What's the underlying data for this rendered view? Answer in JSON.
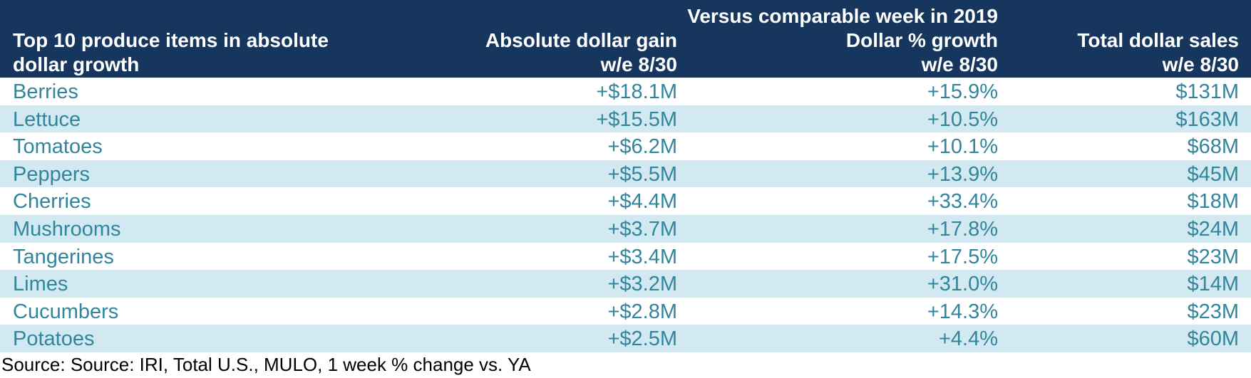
{
  "chart_data": {
    "type": "table",
    "header": {
      "super": "Versus comparable week in 2019",
      "col_item": [
        "Top 10 produce items in absolute",
        "dollar growth"
      ],
      "col_gain": [
        "Absolute dollar gain",
        "w/e 8/30"
      ],
      "col_pct": [
        "Dollar % growth",
        "w/e 8/30"
      ],
      "col_sales": [
        "Total dollar sales",
        "w/e 8/30"
      ]
    },
    "rows": [
      {
        "item": "Berries",
        "gain": "+$18.1M",
        "pct": "+15.9%",
        "sales": "$131M"
      },
      {
        "item": "Lettuce",
        "gain": "+$15.5M",
        "pct": "+10.5%",
        "sales": "$163M"
      },
      {
        "item": "Tomatoes",
        "gain": "+$6.2M",
        "pct": "+10.1%",
        "sales": "$68M"
      },
      {
        "item": "Peppers",
        "gain": "+$5.5M",
        "pct": "+13.9%",
        "sales": "$45M"
      },
      {
        "item": "Cherries",
        "gain": "+$4.4M",
        "pct": "+33.4%",
        "sales": "$18M"
      },
      {
        "item": "Mushrooms",
        "gain": "+$3.7M",
        "pct": "+17.8%",
        "sales": "$24M"
      },
      {
        "item": "Tangerines",
        "gain": "+$3.4M",
        "pct": "+17.5%",
        "sales": "$23M"
      },
      {
        "item": "Limes",
        "gain": "+$3.2M",
        "pct": "+31.0%",
        "sales": "$14M"
      },
      {
        "item": "Cucumbers",
        "gain": "+$2.8M",
        "pct": "+14.3%",
        "sales": "$23M"
      },
      {
        "item": "Potatoes",
        "gain": "+$2.5M",
        "pct": "+4.4%",
        "sales": "$60M"
      }
    ],
    "source": "Source: Source: IRI, Total U.S., MULO, 1 week % change vs. YA",
    "colors": {
      "header_bg": "#17365d",
      "header_text": "#ffffff",
      "row_text": "#31859c",
      "row_alt_bg": "#d2e9f1",
      "row_bg": "#ffffff"
    }
  }
}
